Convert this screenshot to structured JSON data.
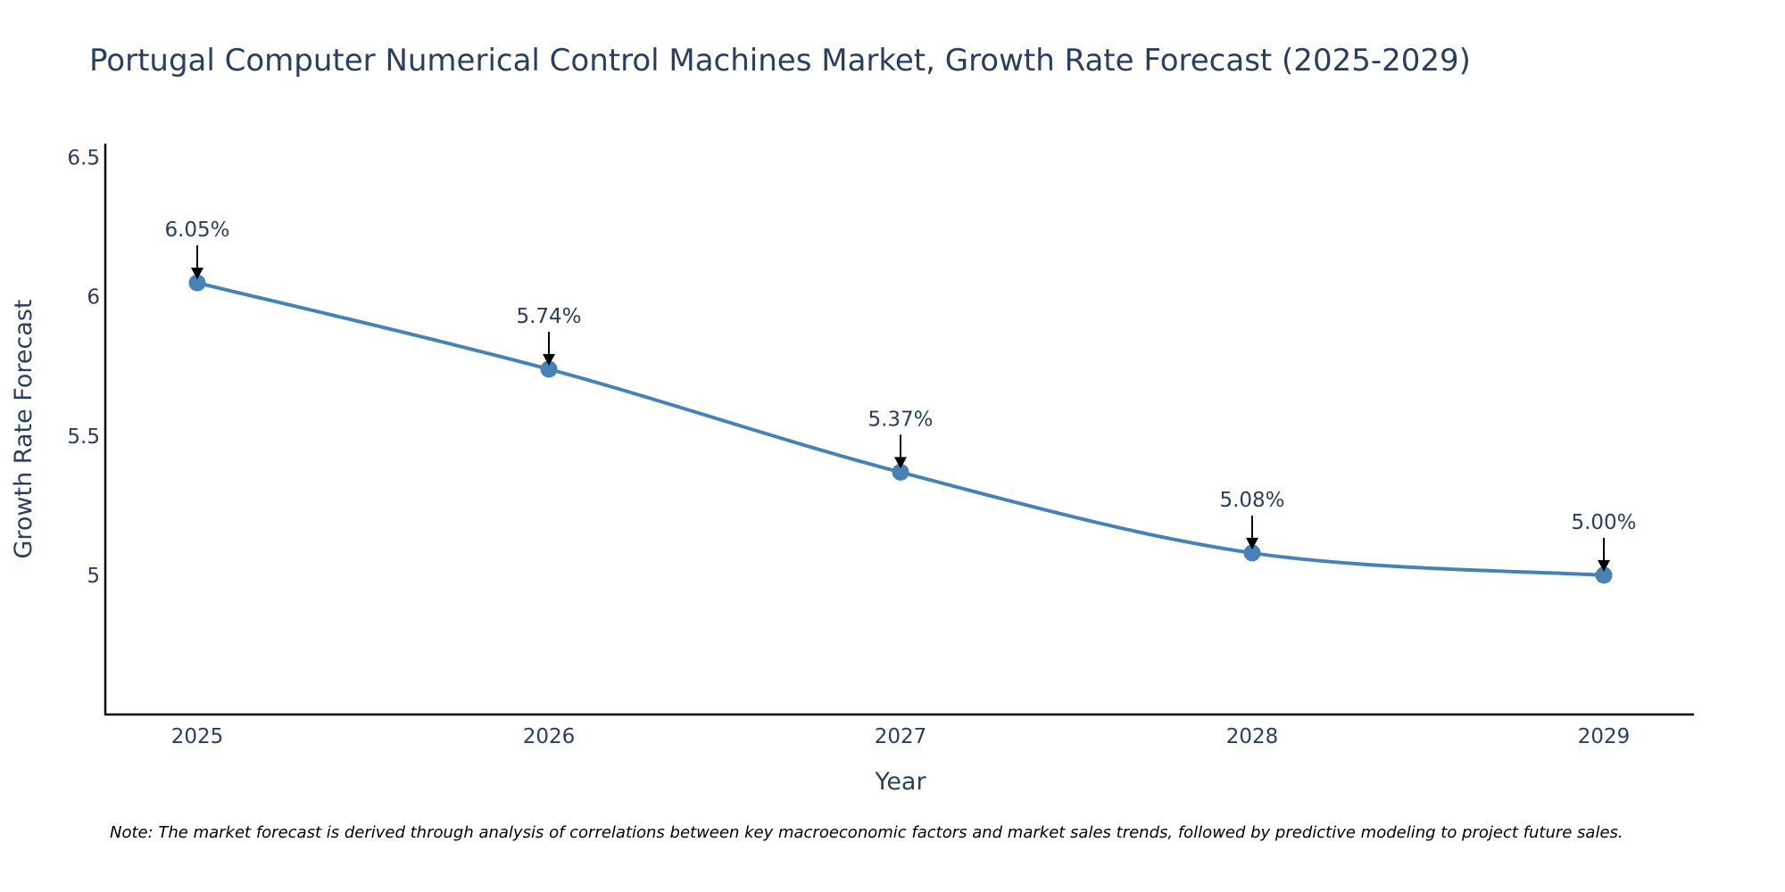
{
  "chart_data": {
    "type": "line",
    "title": "Portugal Computer Numerical Control Machines Market, Growth Rate Forecast (2025-2029)",
    "xlabel": "Year",
    "ylabel": "Growth Rate Forecast",
    "categories": [
      "2025",
      "2026",
      "2027",
      "2028",
      "2029"
    ],
    "series": [
      {
        "name": "Growth Rate Forecast",
        "values": [
          6.05,
          5.74,
          5.37,
          5.08,
          5.0
        ],
        "labels": [
          "6.05%",
          "5.74%",
          "5.37%",
          "5.08%",
          "5.00%"
        ]
      }
    ],
    "ylim": [
      4.5,
      6.55
    ],
    "yticks": [
      5,
      5.5,
      6,
      6.5
    ],
    "ytick_labels": [
      "5",
      "5.5",
      "6",
      "6.5"
    ],
    "grid": false,
    "line_color": "#4682b4",
    "note": "Note: The market forecast is derived through analysis of correlations between key macroeconomic factors and market sales trends, followed by predictive modeling to project future sales."
  }
}
